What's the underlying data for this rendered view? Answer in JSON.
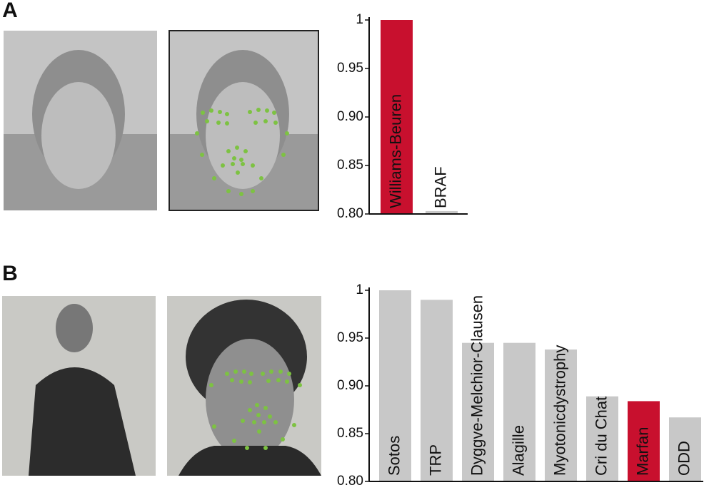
{
  "chart_data": [
    {
      "type": "bar",
      "panel_label": "A",
      "categories": [
        "Williams-Beuren",
        "BRAF"
      ],
      "values": [
        1.0,
        0.803
      ],
      "colors": [
        "#c8102e",
        "#c8c8c8"
      ],
      "ylim": [
        0.8,
        1.0
      ],
      "yticks": [
        {
          "value": 0.8,
          "label": "0.80"
        },
        0.85,
        {
          "value": 0.9,
          "label": "0.90"
        },
        0.95,
        1
      ]
    },
    {
      "type": "bar",
      "panel_label": "B",
      "categories": [
        "Sotos",
        "TRP",
        "Dyggve-Melchior-Clausen",
        "Alagille",
        "Myotonicdystrophy",
        "Cri du Chat",
        "Marfan",
        "ODD"
      ],
      "values": [
        1.0,
        0.99,
        0.945,
        0.945,
        0.938,
        0.889,
        0.884,
        0.867
      ],
      "colors": [
        "#c8c8c8",
        "#c8c8c8",
        "#c8c8c8",
        "#c8c8c8",
        "#c8c8c8",
        "#c8c8c8",
        "#c8102e",
        "#c8c8c8"
      ],
      "ylim": [
        0.8,
        1.0
      ],
      "yticks": [
        {
          "value": 0.8,
          "label": "0.80"
        },
        0.85,
        {
          "value": 0.9,
          "label": "0.90"
        },
        0.95,
        1
      ]
    }
  ]
}
